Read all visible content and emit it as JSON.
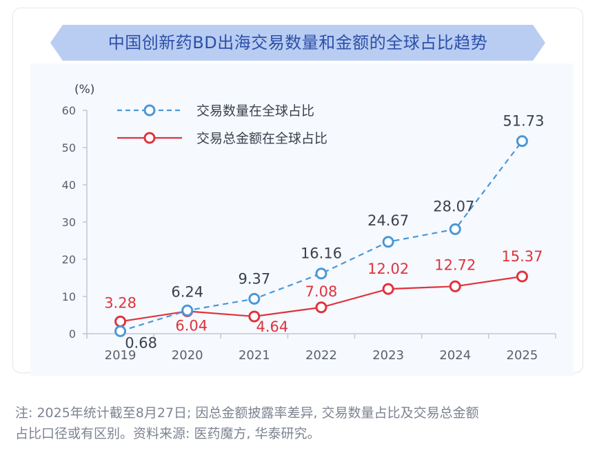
{
  "title": "中国创新药BD出海交易数量和金额的全球占比趋势",
  "colors": {
    "banner_fill": "#b9cdf2",
    "banner_text": "#2c4fa8",
    "series_count": "#4a97d6",
    "series_amount": "#e0323c",
    "label_dark": "#3a3f4b",
    "axis": "#c4c8cf",
    "tick_text": "#5a5f6a"
  },
  "chart_data": {
    "type": "line",
    "title": "中国创新药BD出海交易数量和金额的全球占比趋势",
    "xlabel": "",
    "ylabel": "(%)",
    "categories": [
      "2019",
      "2020",
      "2021",
      "2022",
      "2023",
      "2024",
      "2025"
    ],
    "ylim": [
      0,
      60
    ],
    "yticks": [
      0,
      10,
      20,
      30,
      40,
      50,
      60
    ],
    "grid": false,
    "legend_position": "top-left",
    "series": [
      {
        "name": "交易数量在全球占比",
        "style": "dashed",
        "color": "#4a97d6",
        "values": [
          0.68,
          6.24,
          9.37,
          16.16,
          24.67,
          28.07,
          51.73
        ],
        "labels": [
          "0.68",
          "6.24",
          "9.37",
          "16.16",
          "24.67",
          "28.07",
          "51.73"
        ]
      },
      {
        "name": "交易总金额在全球占比",
        "style": "solid",
        "color": "#e0323c",
        "values": [
          3.28,
          6.04,
          4.64,
          7.08,
          12.02,
          12.72,
          15.37
        ],
        "labels": [
          "3.28",
          "6.04",
          "4.64",
          "7.08",
          "12.02",
          "12.72",
          "15.37"
        ]
      }
    ]
  },
  "footnote": {
    "line1": "注: 2025年统计截至8月27日; 因总金额披露率差异, 交易数量占比及交易总金额",
    "line2": "占比口径或有区别。资料来源: 医药魔方, 华泰研究。"
  }
}
